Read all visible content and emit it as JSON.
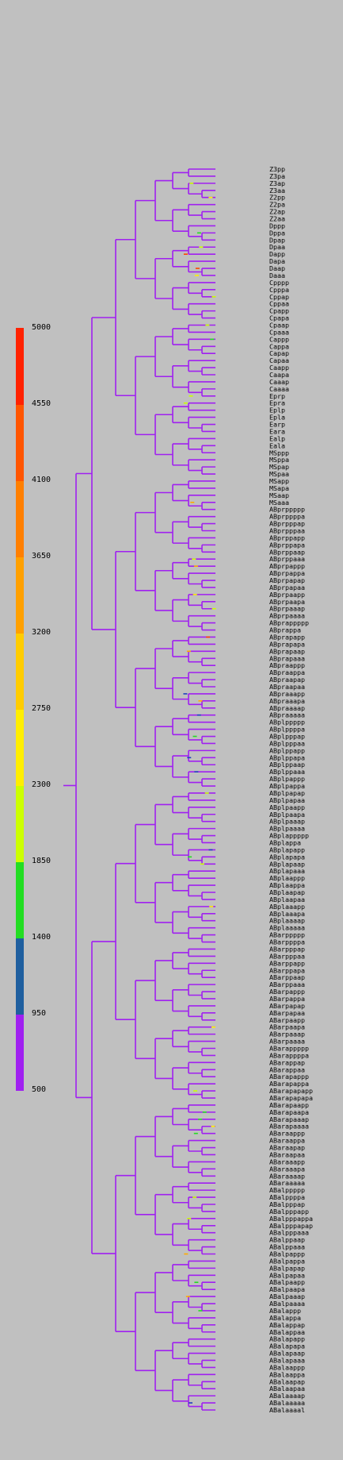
{
  "colors": {
    "background": "#c0c0c0",
    "default_branch": "#a020f0",
    "scale": [
      "#a020f0",
      "#1f5f9f",
      "#22dd22",
      "#ccff00",
      "#ffee00",
      "#ffcc00",
      "#ffa000",
      "#ff7f00",
      "#ff5500",
      "#ff2200"
    ]
  },
  "legend": {
    "ticks": [
      "5000",
      "4550",
      "4100",
      "3650",
      "3200",
      "2750",
      "2300",
      "1850",
      "1400",
      "950",
      "500"
    ]
  },
  "leaves": [
    "Z3pp",
    "Z3pa",
    "Z3ap",
    "Z3aa",
    "Z2pp",
    "Z2pa",
    "Z2ap",
    "Z2aa",
    "Dppp",
    "Dppa",
    "Dpap",
    "Dpaa",
    "Dapp",
    "Dapa",
    "Daap",
    "Daaa",
    "Cpppp",
    "Cpppa",
    "Cppap",
    "Cppaa",
    "Cpapp",
    "Cpapa",
    "Cpaap",
    "Cpaaa",
    "Cappp",
    "Cappa",
    "Capap",
    "Capaa",
    "Caapp",
    "Caapa",
    "Caaap",
    "Caaaa",
    "Eprp",
    "Epra",
    "Eplp",
    "Epla",
    "Earp",
    "Eara",
    "Ealp",
    "Eala",
    "MSppp",
    "MSppa",
    "MSpap",
    "MSpaa",
    "MSapp",
    "MSapa",
    "MSaap",
    "MSaaa",
    "ABprppppp",
    "ABprppppa",
    "ABprpppap",
    "ABprpppaa",
    "ABprppapp",
    "ABprppapa",
    "ABprppaap",
    "ABprppaaa",
    "ABprpappp",
    "ABprpappa",
    "ABprpapap",
    "ABprpapaa",
    "ABprpaapp",
    "ABprpaapa",
    "ABprpaaap",
    "ABprpaaaa",
    "ABprappppp",
    "ABprappa",
    "ABprapapp",
    "ABprapapa",
    "ABprapaap",
    "ABprapaaa",
    "ABpraappp",
    "ABpraappa",
    "ABpraapap",
    "ABpraapaa",
    "ABpraaapp",
    "ABpraaapa",
    "ABpraaaap",
    "ABpraaaaa",
    "ABplppppp",
    "ABplppppa",
    "ABplpppap",
    "ABplpppaa",
    "ABplppapp",
    "ABplppapa",
    "ABplppaap",
    "ABplppaaa",
    "ABplpappp",
    "ABplpappa",
    "ABplpapap",
    "ABplpapaa",
    "ABplpaapp",
    "ABplpaapa",
    "ABplpaaap",
    "ABplpaaaa",
    "ABplappppp",
    "ABplappa",
    "ABplapapp",
    "ABplapapa",
    "ABplapaap",
    "ABplapaaa",
    "ABplaappp",
    "ABplaappa",
    "ABplaapap",
    "ABplaapaa",
    "ABplaaapp",
    "ABplaaapa",
    "ABplaaaap",
    "ABplaaaaa",
    "ABarppppp",
    "ABarppppa",
    "ABarpppap",
    "ABarpppaa",
    "ABarppapp",
    "ABarppapa",
    "ABarppaap",
    "ABarppaaa",
    "ABarpappp",
    "ABarpappa",
    "ABarpapap",
    "ABarpapaa",
    "ABarpaapp",
    "ABarpaapa",
    "ABarpaaap",
    "ABarpaaaa",
    "ABarappppp",
    "ABarappppa",
    "ABarappap",
    "ABarappaa",
    "ABarapappp",
    "ABarapappa",
    "ABarapapapp",
    "ABarapapapa",
    "ABarapaapp",
    "ABarapaapa",
    "ABarapaaap",
    "ABarapaaaa",
    "ABaraappp",
    "ABaraappa",
    "ABaraapap",
    "ABaraapaa",
    "ABaraaapp",
    "ABaraaapa",
    "ABaraaaap",
    "ABaraaaaa",
    "ABalppppp",
    "ABalppppa",
    "ABalpppap",
    "ABalpppapp",
    "ABalpppappa",
    "ABalpppapap",
    "ABalpppaaa",
    "ABalppaap",
    "ABalppaaa",
    "ABalpappp",
    "ABalpappa",
    "ABalpapap",
    "ABalpapaa",
    "ABalpaapp",
    "ABalpaapa",
    "ABalpaaap",
    "ABalpaaaa",
    "ABalappp",
    "ABalappa",
    "ABalappap",
    "ABalappaa",
    "ABalapapp",
    "ABalapapa",
    "ABalapaap",
    "ABalapaaa",
    "ABalaappp",
    "ABalaappa",
    "ABalaapap",
    "ABalaapaa",
    "ABalaaaap",
    "ABalaaaaa",
    "ABalaaaal"
  ]
}
